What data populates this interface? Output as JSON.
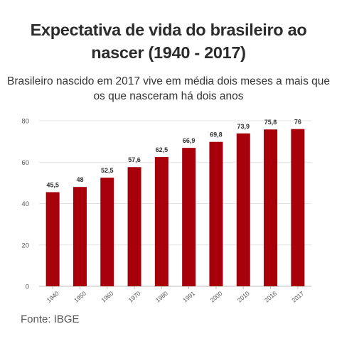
{
  "title_line1": "Expectativa de vida do brasileiro ao",
  "title_line2": "nascer (1940 - 2017)",
  "subtitle_line1": "Brasileiro nascido em 2017 vive em média dois meses a mais que",
  "subtitle_line2": "os que nasceram há dois anos",
  "source": "Fonte: IBGE",
  "colors": {
    "bar": "#a8000b",
    "grid": "#e4e4e4",
    "axis": "#bbbbbb",
    "text": "#333333"
  },
  "chart_data": {
    "type": "bar",
    "categories": [
      "1940",
      "1950",
      "1960",
      "1970",
      "1980",
      "1991",
      "2000",
      "2010",
      "2016",
      "2017"
    ],
    "values": [
      45.5,
      48,
      52.5,
      57.6,
      62.5,
      66.9,
      69.8,
      73.9,
      75.8,
      76
    ],
    "value_labels": [
      "45,5",
      "48",
      "52,5",
      "57,6",
      "62,5",
      "66,9",
      "69,8",
      "73,9",
      "75,8",
      "76"
    ],
    "yticks": [
      0,
      20,
      40,
      60,
      80
    ],
    "ylim": [
      0,
      80
    ],
    "grid": true,
    "xlabel": "",
    "ylabel": ""
  }
}
